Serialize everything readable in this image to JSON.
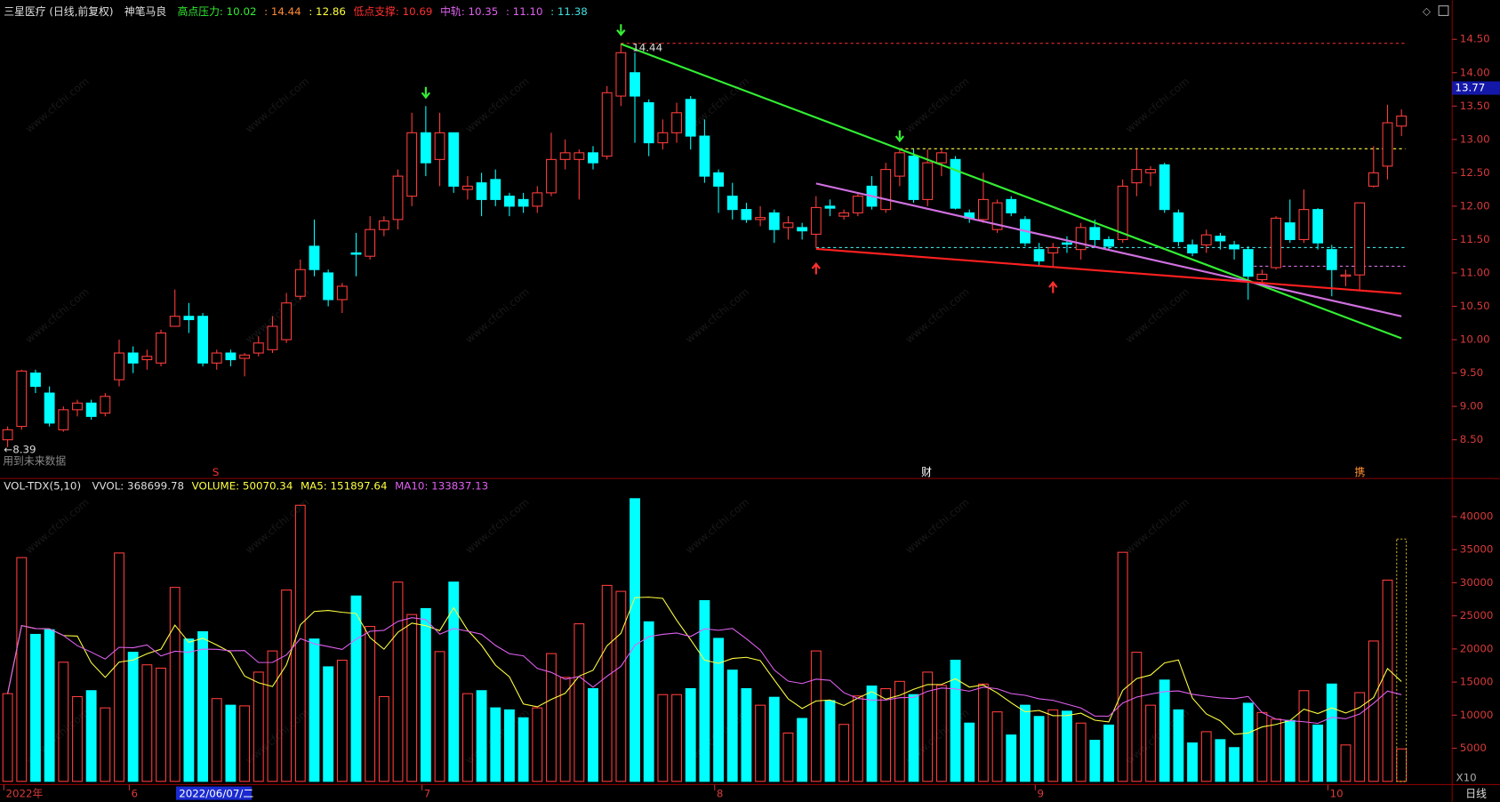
{
  "chart_data": [
    {
      "type": "candlestick",
      "title": "三星医疗 (日线,前复权)",
      "indicator": "神笔马良",
      "header_items": [
        {
          "text": "高点压力: 10.02",
          "color": "#33ee33"
        },
        {
          "text": ": 14.44",
          "color": "#ff8a30"
        },
        {
          "text": ": 12.86",
          "color": "#ffff40"
        },
        {
          "text": "低点支撑: 10.69",
          "color": "#ff3030"
        },
        {
          "text": "中轨: 10.35",
          "color": "#e060f0"
        },
        {
          "text": ": 11.10",
          "color": "#e060f0"
        },
        {
          "text": ": 11.38",
          "color": "#40e0e0"
        }
      ],
      "categories": [
        "2022年",
        null,
        null,
        null,
        null,
        null,
        null,
        null,
        null,
        "6",
        null,
        null,
        null,
        null,
        null,
        null,
        null,
        null,
        null,
        null,
        null,
        null,
        null,
        null,
        null,
        null,
        null,
        null,
        null,
        null,
        "7",
        null,
        null,
        null,
        null,
        null,
        null,
        null,
        null,
        null,
        null,
        null,
        null,
        null,
        null,
        null,
        null,
        null,
        null,
        null,
        null,
        "8",
        null,
        null,
        null,
        null,
        null,
        null,
        null,
        null,
        null,
        null,
        null,
        null,
        null,
        null,
        null,
        null,
        null,
        null,
        null,
        null,
        null,
        null,
        "9",
        null,
        null,
        null,
        null,
        null,
        null,
        null,
        null,
        null,
        null,
        null,
        null,
        null,
        null,
        null,
        null,
        null,
        null,
        null,
        null,
        "10",
        null,
        null,
        null,
        null,
        null
      ],
      "cursor_label": "2022/06/07/二",
      "open": [
        8.5,
        8.7,
        9.5,
        9.2,
        8.65,
        8.95,
        9.05,
        8.9,
        9.4,
        9.8,
        9.7,
        9.65,
        10.2,
        10.35,
        10.35,
        9.65,
        9.8,
        9.72,
        9.8,
        9.85,
        10.0,
        10.65,
        11.4,
        11.0,
        10.6,
        11.3,
        11.25,
        11.65,
        11.8,
        12.15,
        13.1,
        12.7,
        13.1,
        12.25,
        12.35,
        12.4,
        12.15,
        12.1,
        12.0,
        12.2,
        12.7,
        12.7,
        12.8,
        12.75,
        13.65,
        14.0,
        13.55,
        12.95,
        13.1,
        13.6,
        13.05,
        12.5,
        12.15,
        11.95,
        11.8,
        11.9,
        11.68,
        11.68,
        11.58,
        12.0,
        11.85,
        11.9,
        12.3,
        11.95,
        12.45,
        12.75,
        12.1,
        12.65,
        12.7,
        11.9,
        11.8,
        11.65,
        12.1,
        11.8,
        11.35,
        11.3,
        11.45,
        11.35,
        11.68,
        11.5,
        11.5,
        12.35,
        12.5,
        12.62,
        11.9,
        11.42,
        11.42,
        11.55,
        11.42,
        11.35,
        10.9,
        11.08,
        11.75,
        11.5,
        11.95,
        11.35,
        10.95,
        10.97,
        12.3,
        12.6,
        13.2
      ],
      "high": [
        8.7,
        9.55,
        9.55,
        9.3,
        9.0,
        9.1,
        9.1,
        9.2,
        10.0,
        9.9,
        9.85,
        10.15,
        10.75,
        10.55,
        10.4,
        9.85,
        9.85,
        9.8,
        10.05,
        10.35,
        10.7,
        11.2,
        11.8,
        11.05,
        10.85,
        11.6,
        11.85,
        11.85,
        12.55,
        13.4,
        13.5,
        13.4,
        13.1,
        12.45,
        12.5,
        12.55,
        12.2,
        12.2,
        12.3,
        13.1,
        13.0,
        12.85,
        12.9,
        13.8,
        14.44,
        14.3,
        13.6,
        13.3,
        13.55,
        13.65,
        13.3,
        12.55,
        12.35,
        12.05,
        12.0,
        11.95,
        11.85,
        11.75,
        12.15,
        12.1,
        11.95,
        12.2,
        12.45,
        12.65,
        12.85,
        12.85,
        12.85,
        12.85,
        12.75,
        11.95,
        12.5,
        12.1,
        12.15,
        11.85,
        11.45,
        11.45,
        11.55,
        11.75,
        11.8,
        11.55,
        12.4,
        12.85,
        12.6,
        12.65,
        11.95,
        11.5,
        11.65,
        11.6,
        11.48,
        11.4,
        11.05,
        11.85,
        12.1,
        12.25,
        11.97,
        11.42,
        11.05,
        12.05,
        12.9,
        13.52,
        13.45
      ],
      "low": [
        8.39,
        8.65,
        9.2,
        8.7,
        8.62,
        8.85,
        8.8,
        8.85,
        9.3,
        9.5,
        9.55,
        9.6,
        10.2,
        10.1,
        9.6,
        9.55,
        9.6,
        9.45,
        9.75,
        9.8,
        9.95,
        10.6,
        10.95,
        10.5,
        10.4,
        10.95,
        11.2,
        11.55,
        11.65,
        12.0,
        12.45,
        12.3,
        12.2,
        12.1,
        11.85,
        12.0,
        11.85,
        11.9,
        11.9,
        12.15,
        12.55,
        12.1,
        12.55,
        12.7,
        13.5,
        12.95,
        12.75,
        12.85,
        12.95,
        12.85,
        12.35,
        11.9,
        11.8,
        11.75,
        11.7,
        11.45,
        11.5,
        11.5,
        11.38,
        11.85,
        11.8,
        11.85,
        11.95,
        11.9,
        12.3,
        12.05,
        12.0,
        12.45,
        11.95,
        11.75,
        11.75,
        11.6,
        11.85,
        11.4,
        11.1,
        11.1,
        11.3,
        11.2,
        11.4,
        11.35,
        11.45,
        12.15,
        12.3,
        11.9,
        11.4,
        11.25,
        11.3,
        11.35,
        11.2,
        10.6,
        10.8,
        11.05,
        11.45,
        11.45,
        11.35,
        10.65,
        10.8,
        10.75,
        12.28,
        12.4,
        13.05
      ],
      "close": [
        8.65,
        9.53,
        9.3,
        8.75,
        8.95,
        9.05,
        8.85,
        9.15,
        9.8,
        9.65,
        9.75,
        10.1,
        10.35,
        10.3,
        9.65,
        9.8,
        9.7,
        9.77,
        9.95,
        10.2,
        10.55,
        11.05,
        11.05,
        10.6,
        10.8,
        11.28,
        11.65,
        11.78,
        12.45,
        13.1,
        12.65,
        13.1,
        12.3,
        12.3,
        12.1,
        12.1,
        12.0,
        12.0,
        12.2,
        12.7,
        12.8,
        12.8,
        12.65,
        13.7,
        14.3,
        13.65,
        12.95,
        13.1,
        13.4,
        13.05,
        12.45,
        12.3,
        11.95,
        11.8,
        11.83,
        11.65,
        11.75,
        11.63,
        11.98,
        11.97,
        11.9,
        12.15,
        12.0,
        12.55,
        12.8,
        12.1,
        12.65,
        12.8,
        11.97,
        11.82,
        12.1,
        12.05,
        11.9,
        11.45,
        11.18,
        11.38,
        11.43,
        11.68,
        11.5,
        11.4,
        12.3,
        12.55,
        12.55,
        11.95,
        11.47,
        11.3,
        11.57,
        11.48,
        11.36,
        10.95,
        10.98,
        11.82,
        11.5,
        11.95,
        11.45,
        11.05,
        10.97,
        12.05,
        12.5,
        13.25,
        13.35
      ],
      "up_color": "#ff3c3c",
      "down_color": "#00ffff",
      "ylim": [
        7.92,
        14.8
      ],
      "yticks": [
        {
          "value": 8.5,
          "label": "8.50"
        },
        {
          "value": 9.0,
          "label": "9.00"
        },
        {
          "value": 9.5,
          "label": "9.50"
        },
        {
          "value": 10.0,
          "label": "10.00"
        },
        {
          "value": 10.5,
          "label": "10.50"
        },
        {
          "value": 11.0,
          "label": "11.00"
        },
        {
          "value": 11.5,
          "label": "11.50"
        },
        {
          "value": 12.0,
          "label": "12.00"
        },
        {
          "value": 12.5,
          "label": "12.50"
        },
        {
          "value": 13.0,
          "label": "13.00"
        },
        {
          "value": 13.5,
          "label": "13.50"
        },
        {
          "value": 14.0,
          "label": "14.00"
        },
        {
          "value": 14.5,
          "label": "14.50"
        }
      ],
      "price_marker": 13.77,
      "trendlines": [
        {
          "color": "#33ee33",
          "from": 44,
          "to": 100,
          "values": [
            14.43,
            10.02
          ]
        },
        {
          "color": "#d070e0",
          "from": 58,
          "to": 100,
          "values": [
            12.34,
            10.35
          ]
        },
        {
          "color": "#ff2020",
          "from": 58,
          "to": 100,
          "values": [
            11.36,
            10.69
          ]
        }
      ],
      "levels": [
        {
          "value": 14.44,
          "from": 44,
          "color": "#ff3030"
        },
        {
          "value": 12.86,
          "from": 64,
          "color": "#ffff40"
        },
        {
          "value": 11.38,
          "from": 58,
          "color": "#40e0e0"
        },
        {
          "value": 11.1,
          "from": 89,
          "color": "#d070e0"
        }
      ],
      "sell_signals": [
        30,
        44,
        64
      ],
      "buy_signals": [
        58,
        75
      ],
      "annotations": [
        {
          "text": "←8.39",
          "color": "#dddddd"
        },
        {
          "text": "用到未来数据",
          "color": "#888888"
        },
        {
          "text": "S",
          "color": "#ff3030"
        },
        {
          "text": "财",
          "color": "#ffffff"
        },
        {
          "text": "携",
          "color": "#ff9030"
        }
      ],
      "watermark": "www.cfchi.com"
    },
    {
      "type": "bar",
      "title": "VOL-TDX(5,10)",
      "header_items": [
        {
          "text": "VVOL: 368699.78",
          "color": "#dddddd"
        },
        {
          "text": "VOLUME: 50070.34",
          "color": "#ffff40"
        },
        {
          "text": "MA5: 151897.64",
          "color": "#ffff40"
        },
        {
          "text": "MA10: 133837.13",
          "color": "#e060f0"
        }
      ],
      "values": [
        13250,
        33800,
        22200,
        22900,
        18000,
        12800,
        13700,
        11100,
        34500,
        19500,
        17600,
        17100,
        29300,
        21500,
        22600,
        12500,
        11500,
        11400,
        16500,
        19700,
        28900,
        41700,
        21500,
        17300,
        18300,
        28000,
        23400,
        12800,
        30100,
        25200,
        26100,
        19600,
        30100,
        13250,
        13700,
        11100,
        10800,
        9600,
        11100,
        19300,
        15700,
        23800,
        14000,
        29600,
        28700,
        42700,
        24100,
        13100,
        13100,
        14000,
        27300,
        21600,
        16800,
        14000,
        11500,
        12700,
        7300,
        9500,
        19700,
        12200,
        8600,
        12900,
        14400,
        14000,
        15100,
        13100,
        16500,
        14500,
        18300,
        8800,
        14700,
        10500,
        7000,
        11500,
        9800,
        10800,
        10600,
        8800,
        6200,
        8500,
        34600,
        19500,
        11500,
        15300,
        10800,
        5800,
        7500,
        6300,
        5100,
        11800,
        10400,
        9400,
        9200,
        13700,
        8500,
        14700,
        5500,
        13400,
        21200,
        30400,
        4900
      ],
      "projected_volume": 36600,
      "ma": [
        {
          "period": 5,
          "color": "#ffff40"
        },
        {
          "period": 10,
          "color": "#e060f0"
        }
      ],
      "ylim": [
        0,
        45750
      ],
      "yticks": [
        5000,
        10000,
        15000,
        20000,
        25000,
        30000,
        35000,
        40000
      ],
      "scale_label": "X10",
      "period_label": "日线"
    }
  ]
}
